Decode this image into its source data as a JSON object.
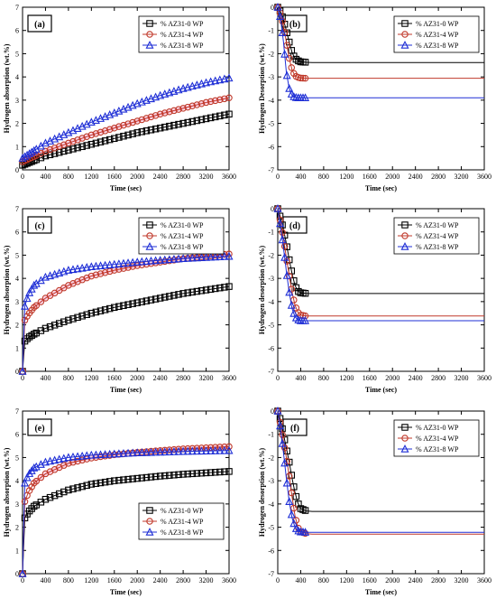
{
  "colors": {
    "series": [
      "#000000",
      "#c0392b",
      "#1f2fd6"
    ],
    "band": "#f4a6c8"
  },
  "chart_data": [
    {
      "id": "a",
      "type": "line",
      "panel_label": "(a)",
      "xlabel": "Time (sec)",
      "ylabel": "Hydrogen absorption (wt.%)",
      "xlim": [
        0,
        3600
      ],
      "ylim": [
        0,
        7
      ],
      "xticks": [
        0,
        400,
        800,
        1200,
        1600,
        2000,
        2400,
        2800,
        3200,
        3600
      ],
      "yticks": [
        0,
        1,
        2,
        3,
        4,
        5,
        6,
        7
      ],
      "legend_position": "top-right",
      "x": [
        0,
        400,
        800,
        1200,
        1600,
        2000,
        2400,
        2800,
        3200,
        3600
      ],
      "series": [
        {
          "name": "% AZ31-0 WP",
          "marker": "square",
          "values": [
            0.2,
            0.6,
            0.85,
            1.1,
            1.35,
            1.6,
            1.8,
            2.0,
            2.2,
            2.4
          ]
        },
        {
          "name": "% AZ31-4 WP",
          "marker": "circle",
          "values": [
            0.35,
            0.8,
            1.15,
            1.5,
            1.8,
            2.1,
            2.4,
            2.65,
            2.9,
            3.1
          ]
        },
        {
          "name": "% AZ31-8 WP",
          "marker": "triangle",
          "values": [
            0.5,
            1.15,
            1.6,
            2.05,
            2.45,
            2.85,
            3.2,
            3.5,
            3.75,
            3.95
          ]
        }
      ]
    },
    {
      "id": "b",
      "type": "line",
      "panel_label": "(b)",
      "xlabel": "Time (sec)",
      "ylabel": "Hydrogen Desorption (wt.%)",
      "xlim": [
        0,
        3600
      ],
      "ylim": [
        -7,
        0
      ],
      "xticks": [
        0,
        400,
        800,
        1200,
        1600,
        2000,
        2400,
        2800,
        3200,
        3600
      ],
      "yticks": [
        0,
        -1,
        -2,
        -3,
        -4,
        -5,
        -6,
        -7
      ],
      "legend_position": "top-right",
      "x": [
        0,
        50,
        100,
        150,
        200,
        250,
        300,
        350,
        400,
        500,
        600,
        800,
        1200,
        1600,
        2000,
        2400,
        2800,
        3200,
        3600
      ],
      "series": [
        {
          "name": "% AZ31-0 WP",
          "marker": "square",
          "values": [
            0,
            -0.2,
            -0.55,
            -1.0,
            -1.5,
            -1.95,
            -2.2,
            -2.3,
            -2.35,
            -2.37,
            -2.38,
            -2.38,
            -2.38,
            -2.38,
            -2.38,
            -2.38,
            -2.38,
            -2.38,
            -2.38
          ]
        },
        {
          "name": "% AZ31-4 WP",
          "marker": "circle",
          "values": [
            0,
            -0.3,
            -0.8,
            -1.5,
            -2.2,
            -2.7,
            -2.95,
            -3.02,
            -3.05,
            -3.06,
            -3.06,
            -3.06,
            -3.06,
            -3.06,
            -3.06,
            -3.06,
            -3.06,
            -3.06,
            -3.06
          ]
        },
        {
          "name": "% AZ31-8 WP",
          "marker": "triangle",
          "values": [
            0,
            -0.5,
            -1.5,
            -2.8,
            -3.5,
            -3.8,
            -3.88,
            -3.9,
            -3.9,
            -3.9,
            -3.9,
            -3.9,
            -3.9,
            -3.9,
            -3.9,
            -3.9,
            -3.9,
            -3.9,
            -3.9
          ]
        }
      ]
    },
    {
      "id": "c",
      "type": "line",
      "panel_label": "(c)",
      "xlabel": "Time (sec)",
      "ylabel": "Hydrogen absorption (wt.%)",
      "xlim": [
        0,
        3600
      ],
      "ylim": [
        0,
        7
      ],
      "xticks": [
        0,
        400,
        800,
        1200,
        1600,
        2000,
        2400,
        2800,
        3200,
        3600
      ],
      "yticks": [
        0,
        1,
        2,
        3,
        4,
        5,
        6,
        7
      ],
      "legend_position": "top-right",
      "x": [
        0,
        40,
        100,
        200,
        400,
        800,
        1200,
        1600,
        2000,
        2400,
        2800,
        3200,
        3600
      ],
      "series": [
        {
          "name": "% AZ31-0 WP",
          "marker": "square",
          "values": [
            0,
            1.3,
            1.45,
            1.6,
            1.85,
            2.2,
            2.5,
            2.75,
            2.95,
            3.15,
            3.35,
            3.5,
            3.65
          ]
        },
        {
          "name": "% AZ31-4 WP",
          "marker": "circle",
          "values": [
            0,
            2.2,
            2.45,
            2.75,
            3.15,
            3.7,
            4.1,
            4.35,
            4.55,
            4.7,
            4.85,
            4.95,
            5.05
          ]
        },
        {
          "name": "% AZ31-8 WP",
          "marker": "triangle",
          "values": [
            0,
            2.8,
            3.3,
            3.7,
            4.05,
            4.35,
            4.5,
            4.6,
            4.7,
            4.78,
            4.85,
            4.9,
            4.95
          ]
        }
      ]
    },
    {
      "id": "d",
      "type": "line",
      "panel_label": "(d)",
      "xlabel": "Time (sec)",
      "ylabel": "Hydrogen desorption (wt.%)",
      "xlim": [
        0,
        3600
      ],
      "ylim": [
        -7,
        0
      ],
      "xticks": [
        0,
        400,
        800,
        1200,
        1600,
        2000,
        2400,
        2800,
        3200,
        3600
      ],
      "yticks": [
        0,
        -1,
        -2,
        -3,
        -4,
        -5,
        -6,
        -7
      ],
      "legend_position": "top-right",
      "x": [
        0,
        50,
        100,
        150,
        200,
        250,
        300,
        350,
        400,
        500,
        600,
        800,
        1200,
        1600,
        2000,
        2400,
        2800,
        3200,
        3600
      ],
      "series": [
        {
          "name": "% AZ31-0 WP",
          "marker": "square",
          "values": [
            0,
            -0.4,
            -0.9,
            -1.5,
            -2.2,
            -2.8,
            -3.3,
            -3.55,
            -3.62,
            -3.65,
            -3.65,
            -3.65,
            -3.65,
            -3.65,
            -3.65,
            -3.65,
            -3.65,
            -3.65,
            -3.65
          ]
        },
        {
          "name": "% AZ31-4 WP",
          "marker": "circle",
          "values": [
            0,
            -0.6,
            -1.3,
            -2.1,
            -2.9,
            -3.6,
            -4.15,
            -4.45,
            -4.58,
            -4.62,
            -4.62,
            -4.62,
            -4.62,
            -4.62,
            -4.62,
            -4.62,
            -4.62,
            -4.62,
            -4.62
          ]
        },
        {
          "name": "% AZ31-8 WP",
          "marker": "triangle",
          "values": [
            0,
            -0.8,
            -1.7,
            -2.7,
            -3.6,
            -4.3,
            -4.65,
            -4.78,
            -4.82,
            -4.82,
            -4.82,
            -4.82,
            -4.82,
            -4.82,
            -4.82,
            -4.82,
            -4.82,
            -4.82,
            -4.82
          ]
        }
      ]
    },
    {
      "id": "e",
      "type": "line",
      "panel_label": "(e)",
      "xlabel": "Time (sec)",
      "ylabel": "Hydrogen absorption (wt.%)",
      "xlim": [
        0,
        3600
      ],
      "ylim": [
        0,
        7
      ],
      "xticks": [
        0,
        400,
        800,
        1200,
        1600,
        2000,
        2400,
        2800,
        3200,
        3600
      ],
      "yticks": [
        0,
        1,
        2,
        3,
        4,
        5,
        6,
        7
      ],
      "legend_position": "bottom-right",
      "x": [
        0,
        40,
        100,
        200,
        400,
        800,
        1200,
        1600,
        2000,
        2400,
        2800,
        3200,
        3600
      ],
      "series": [
        {
          "name": "% AZ31-0 WP",
          "marker": "square",
          "values": [
            0,
            2.4,
            2.65,
            2.9,
            3.2,
            3.6,
            3.85,
            4.0,
            4.1,
            4.2,
            4.28,
            4.34,
            4.4
          ]
        },
        {
          "name": "% AZ31-4 WP",
          "marker": "circle",
          "values": [
            0,
            3.1,
            3.5,
            3.9,
            4.3,
            4.75,
            4.98,
            5.12,
            5.22,
            5.3,
            5.37,
            5.42,
            5.47
          ]
        },
        {
          "name": "% AZ31-8 WP",
          "marker": "triangle",
          "values": [
            0,
            3.9,
            4.25,
            4.55,
            4.8,
            5.0,
            5.1,
            5.15,
            5.2,
            5.23,
            5.26,
            5.28,
            5.3
          ]
        }
      ]
    },
    {
      "id": "f",
      "type": "line",
      "panel_label": "(f)",
      "xlabel": "Time (sec)",
      "ylabel": "Hydrogen desorption (wt.%)",
      "xlim": [
        0,
        3600
      ],
      "ylim": [
        -7,
        0
      ],
      "xticks": [
        0,
        400,
        800,
        1200,
        1600,
        2000,
        2400,
        2800,
        3200,
        3600
      ],
      "yticks": [
        0,
        -1,
        -2,
        -3,
        -4,
        -5,
        -6,
        -7
      ],
      "legend_position": "top-right",
      "x": [
        0,
        50,
        100,
        150,
        200,
        250,
        300,
        350,
        400,
        500,
        600,
        800,
        1200,
        1600,
        2000,
        2400,
        2800,
        3200,
        3600
      ],
      "series": [
        {
          "name": "% AZ31-0 WP",
          "marker": "square",
          "values": [
            0,
            -0.4,
            -1.0,
            -1.6,
            -2.2,
            -2.9,
            -3.5,
            -3.95,
            -4.2,
            -4.3,
            -4.32,
            -4.32,
            -4.32,
            -4.32,
            -4.32,
            -4.32,
            -4.32,
            -4.32,
            -4.32
          ]
        },
        {
          "name": "% AZ31-4 WP",
          "marker": "circle",
          "values": [
            0,
            -0.6,
            -1.3,
            -2.0,
            -2.8,
            -3.7,
            -4.5,
            -5.0,
            -5.2,
            -5.28,
            -5.3,
            -5.3,
            -5.3,
            -5.3,
            -5.3,
            -5.3,
            -5.3,
            -5.3,
            -5.3
          ]
        },
        {
          "name": "% AZ31-8 WP",
          "marker": "triangle",
          "values": [
            0,
            -0.8,
            -1.8,
            -2.9,
            -3.9,
            -4.6,
            -5.0,
            -5.15,
            -5.2,
            -5.22,
            -5.22,
            -5.22,
            -5.22,
            -5.22,
            -5.22,
            -5.22,
            -5.22,
            -5.22,
            -5.22
          ]
        }
      ]
    }
  ]
}
